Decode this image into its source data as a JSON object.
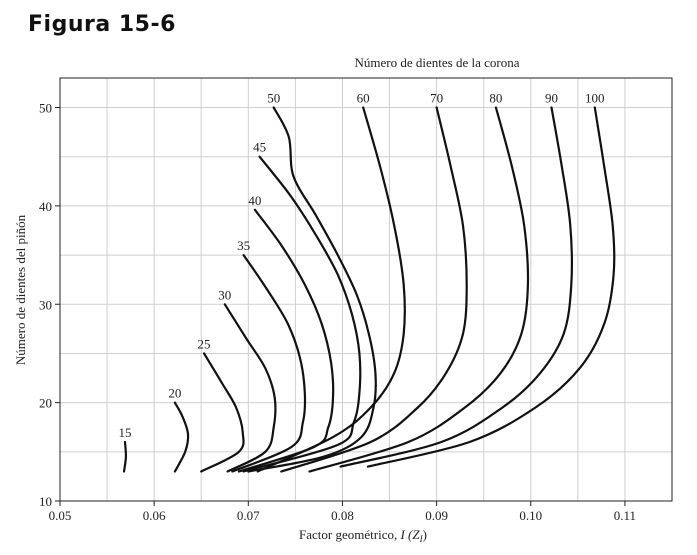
{
  "figure": {
    "title": "Figura 15-6"
  },
  "chart_data": {
    "type": "line",
    "title": "Número de dientes de la corona",
    "xlabel": "Factor geométrico, ",
    "xlabel_symbol": "I (Z",
    "xlabel_sub": "I",
    "xlabel_close": ")",
    "ylabel": "Número de dientes del piñón",
    "xlim": [
      0.05,
      0.115
    ],
    "ylim": [
      10,
      53
    ],
    "xticks": [
      0.05,
      0.06,
      0.07,
      0.08,
      0.09,
      0.1,
      0.11
    ],
    "xtick_labels": [
      "0.05",
      "0.06",
      "0.07",
      "0.08",
      "0.09",
      "0.10",
      "0.11"
    ],
    "yticks": [
      10,
      20,
      30,
      40,
      50
    ],
    "ytick_labels": [
      "10",
      "20",
      "30",
      "40",
      "50"
    ],
    "grid": true,
    "series": [
      {
        "name": "15",
        "points": [
          [
            0.0569,
            16.0
          ],
          [
            0.057,
            14.5
          ],
          [
            0.0568,
            13.0
          ]
        ]
      },
      {
        "name": "20",
        "points": [
          [
            0.0622,
            20.0
          ],
          [
            0.063,
            18.6
          ],
          [
            0.0636,
            16.8
          ],
          [
            0.0633,
            15.0
          ],
          [
            0.0622,
            13.0
          ]
        ]
      },
      {
        "name": "25",
        "points": [
          [
            0.0653,
            25.0
          ],
          [
            0.0672,
            22.0
          ],
          [
            0.0687,
            19.5
          ],
          [
            0.0694,
            17.0
          ],
          [
            0.069,
            15.0
          ],
          [
            0.065,
            13.0
          ]
        ]
      },
      {
        "name": "30",
        "points": [
          [
            0.0675,
            30.0
          ],
          [
            0.0698,
            26.5
          ],
          [
            0.0718,
            23.5
          ],
          [
            0.0728,
            20.5
          ],
          [
            0.0727,
            17.5
          ],
          [
            0.0718,
            15.0
          ],
          [
            0.0678,
            13.0
          ]
        ]
      },
      {
        "name": "35",
        "points": [
          [
            0.0695,
            35.0
          ],
          [
            0.072,
            31.5
          ],
          [
            0.0742,
            28.0
          ],
          [
            0.0755,
            24.5
          ],
          [
            0.076,
            21.0
          ],
          [
            0.0758,
            18.0
          ],
          [
            0.0746,
            15.5
          ],
          [
            0.0683,
            13.0
          ]
        ]
      },
      {
        "name": "40",
        "points": [
          [
            0.0707,
            39.6
          ],
          [
            0.0735,
            36.0
          ],
          [
            0.076,
            32.0
          ],
          [
            0.0778,
            28.0
          ],
          [
            0.0788,
            24.0
          ],
          [
            0.079,
            20.5
          ],
          [
            0.0785,
            17.5
          ],
          [
            0.077,
            15.5
          ],
          [
            0.069,
            13.0
          ]
        ]
      },
      {
        "name": "45",
        "points": [
          [
            0.0712,
            45.0
          ],
          [
            0.0745,
            41.0
          ],
          [
            0.0772,
            37.0
          ],
          [
            0.0795,
            33.0
          ],
          [
            0.081,
            29.0
          ],
          [
            0.0818,
            25.0
          ],
          [
            0.0818,
            21.0
          ],
          [
            0.0812,
            18.0
          ],
          [
            0.0795,
            15.7
          ],
          [
            0.0695,
            13.0
          ]
        ]
      },
      {
        "name": "50",
        "points": [
          [
            0.0727,
            50.0
          ],
          [
            0.0743,
            47.0
          ],
          [
            0.0748,
            43.0
          ],
          [
            0.0772,
            39.0
          ],
          [
            0.0795,
            35.0
          ],
          [
            0.0815,
            31.0
          ],
          [
            0.0828,
            27.0
          ],
          [
            0.0835,
            23.0
          ],
          [
            0.0833,
            19.5
          ],
          [
            0.082,
            16.5
          ],
          [
            0.078,
            14.5
          ],
          [
            0.07,
            13.0
          ]
        ]
      },
      {
        "name": "60",
        "points": [
          [
            0.0822,
            50.0
          ],
          [
            0.084,
            44.0
          ],
          [
            0.0855,
            38.0
          ],
          [
            0.0865,
            32.0
          ],
          [
            0.0865,
            27.0
          ],
          [
            0.0855,
            23.0
          ],
          [
            0.083,
            19.5
          ],
          [
            0.079,
            16.5
          ],
          [
            0.071,
            13.0
          ]
        ]
      },
      {
        "name": "70",
        "points": [
          [
            0.09,
            50.0
          ],
          [
            0.0915,
            44.0
          ],
          [
            0.0928,
            38.0
          ],
          [
            0.0932,
            32.0
          ],
          [
            0.0928,
            27.0
          ],
          [
            0.091,
            23.0
          ],
          [
            0.088,
            19.5
          ],
          [
            0.083,
            16.0
          ],
          [
            0.0735,
            13.0
          ]
        ]
      },
      {
        "name": "80",
        "points": [
          [
            0.0963,
            50.0
          ],
          [
            0.098,
            44.0
          ],
          [
            0.0993,
            38.0
          ],
          [
            0.0997,
            32.0
          ],
          [
            0.099,
            27.0
          ],
          [
            0.0968,
            23.0
          ],
          [
            0.093,
            19.5
          ],
          [
            0.087,
            16.0
          ],
          [
            0.0765,
            13.0
          ]
        ]
      },
      {
        "name": "90",
        "points": [
          [
            0.1022,
            50.0
          ],
          [
            0.1033,
            44.0
          ],
          [
            0.1042,
            38.0
          ],
          [
            0.1043,
            32.0
          ],
          [
            0.1035,
            27.0
          ],
          [
            0.101,
            23.0
          ],
          [
            0.097,
            19.5
          ],
          [
            0.0905,
            16.0
          ],
          [
            0.0798,
            13.5
          ]
        ]
      },
      {
        "name": "100",
        "points": [
          [
            0.1068,
            50.0
          ],
          [
            0.1078,
            44.0
          ],
          [
            0.1087,
            38.0
          ],
          [
            0.1088,
            33.0
          ],
          [
            0.1078,
            28.0
          ],
          [
            0.1052,
            23.5
          ],
          [
            0.1005,
            19.5
          ],
          [
            0.0935,
            16.0
          ],
          [
            0.0827,
            13.5
          ]
        ]
      }
    ]
  }
}
